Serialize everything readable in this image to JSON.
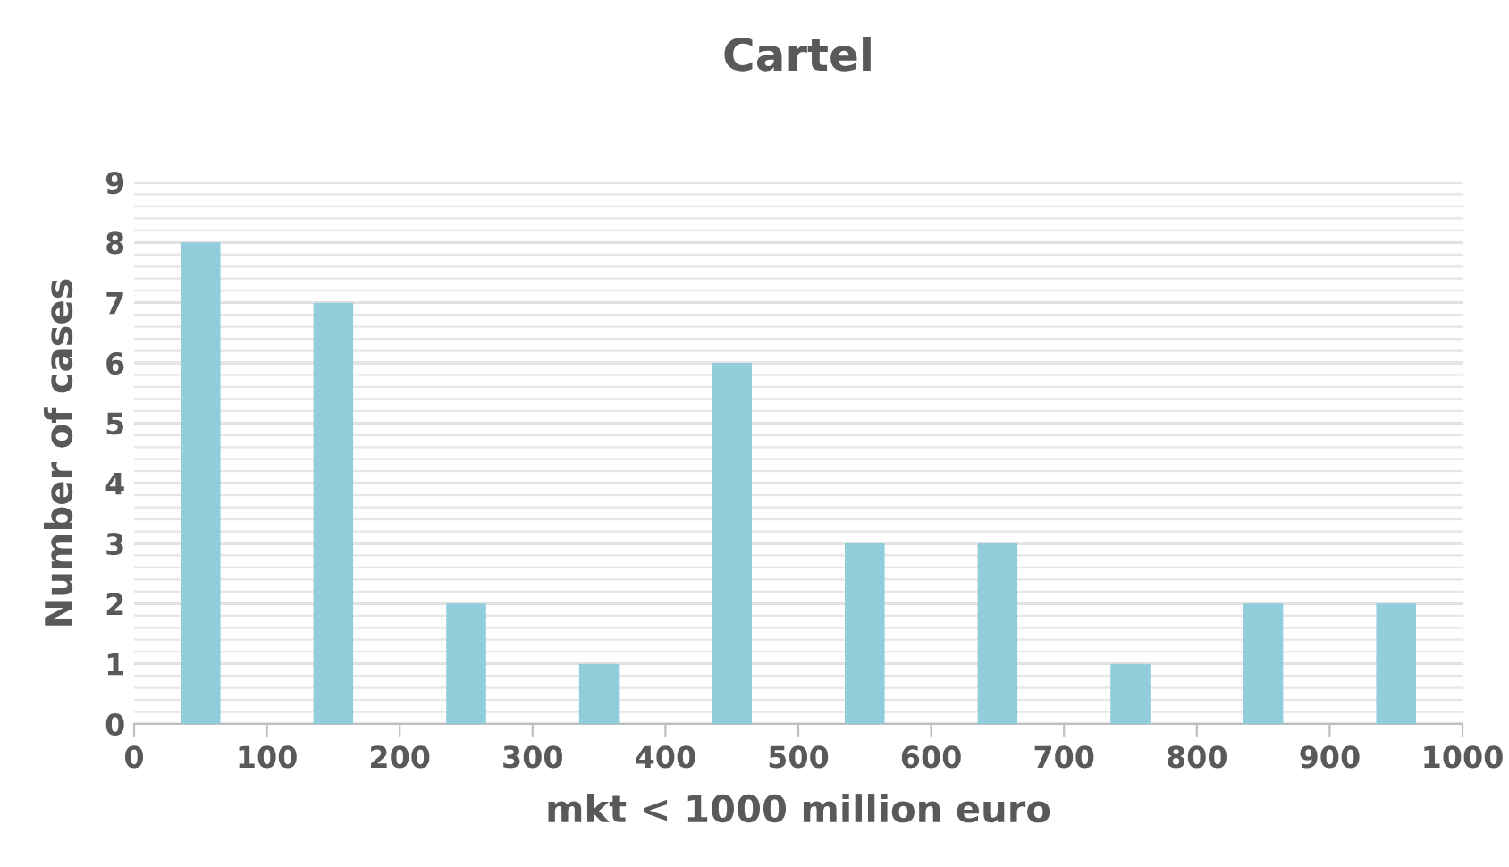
{
  "chart_data": {
    "type": "bar",
    "title": "Cartel",
    "xlabel": "mkt < 1000 million euro",
    "ylabel": "Number of cases",
    "x": [
      50,
      150,
      250,
      350,
      450,
      550,
      650,
      750,
      850,
      950
    ],
    "values": [
      8,
      7,
      2,
      1,
      6,
      3,
      3,
      1,
      2,
      2
    ],
    "color": "#92cddc",
    "xlim": [
      0,
      1000
    ],
    "xticks": [
      0,
      100,
      200,
      300,
      400,
      500,
      600,
      700,
      800,
      900,
      1000
    ],
    "ylim": [
      0,
      9
    ],
    "yticks": [
      0,
      1,
      2,
      3,
      4,
      5,
      6,
      7,
      8,
      9
    ],
    "grid": "y"
  }
}
